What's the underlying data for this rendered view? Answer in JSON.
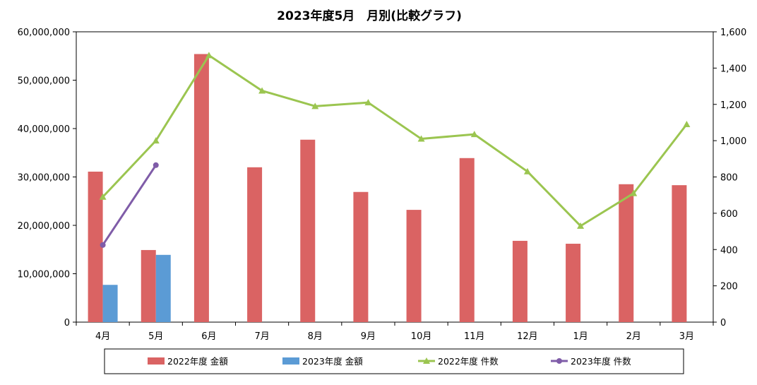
{
  "chart_data": {
    "type": "bar",
    "title": "2023年度5月　月別(比較グラフ)",
    "categories": [
      "4月",
      "5月",
      "6月",
      "7月",
      "8月",
      "9月",
      "10月",
      "11月",
      "12月",
      "1月",
      "2月",
      "3月"
    ],
    "y_left": {
      "min": 0,
      "max": 60000000,
      "ticks": [
        "0",
        "10,000,000",
        "20,000,000",
        "30,000,000",
        "40,000,000",
        "50,000,000",
        "60,000,000"
      ]
    },
    "y_right": {
      "min": 0,
      "max": 1600,
      "ticks": [
        "0",
        "200",
        "400",
        "600",
        "800",
        "1,000",
        "1,200",
        "1,400",
        "1,600"
      ]
    },
    "grid": false,
    "legend_position": "bottom",
    "series": [
      {
        "name": "2022年度 金額",
        "kind": "bar",
        "axis": "left",
        "color": "#DA6363",
        "values": [
          31100000,
          14900000,
          55400000,
          32000000,
          37700000,
          26900000,
          23200000,
          33900000,
          16800000,
          16200000,
          28500000,
          28300000
        ]
      },
      {
        "name": "2023年度 金額",
        "kind": "bar",
        "axis": "left",
        "color": "#5B9BD5",
        "values": [
          7700000,
          13900000,
          null,
          null,
          null,
          null,
          null,
          null,
          null,
          null,
          null,
          null
        ]
      },
      {
        "name": "2022年度 件数",
        "kind": "line",
        "axis": "right",
        "color": "#9BC550",
        "marker": "triangle",
        "values": [
          690,
          1000,
          1470,
          1275,
          1190,
          1210,
          1010,
          1035,
          830,
          530,
          710,
          1090
        ]
      },
      {
        "name": "2023年度 件数",
        "kind": "line",
        "axis": "right",
        "color": "#7F5CA8",
        "marker": "circle",
        "values": [
          425,
          865,
          null,
          null,
          null,
          null,
          null,
          null,
          null,
          null,
          null,
          null
        ]
      }
    ]
  }
}
